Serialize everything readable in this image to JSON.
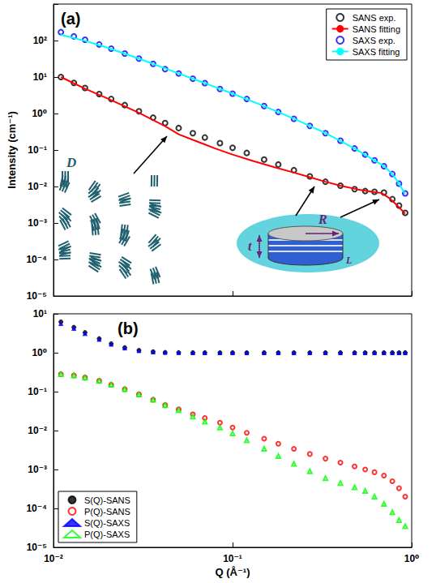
{
  "chart_data": [
    {
      "type": "scatter",
      "title": "(a)",
      "ylabel": "Intensity (cm⁻¹)",
      "log": true,
      "grid": false,
      "legend": "upper right",
      "tick_labels": "y",
      "xlim": [
        0.01,
        1
      ],
      "xticks": [
        0.01,
        0.1,
        1
      ],
      "ylim": [
        1e-05,
        1000
      ],
      "yticks": [
        {
          "value": 1e-05,
          "label": "10⁻⁵"
        },
        {
          "value": 0.0001,
          "label": "10⁻⁴"
        },
        {
          "value": 0.001,
          "label": "10⁻³"
        },
        {
          "value": 0.01,
          "label": "10⁻²"
        },
        {
          "value": 0.1,
          "label": "10⁻¹"
        },
        {
          "value": 1,
          "label": "10⁰"
        },
        {
          "value": 10,
          "label": "10¹"
        },
        {
          "value": 100,
          "label": "10²"
        }
      ],
      "annotations": [
        "D",
        "R",
        "t",
        "L"
      ],
      "series": [
        {
          "name": "SANS exp.",
          "type": "scatter",
          "marker": "open_circle",
          "color": "#000000",
          "x": [
            0.011,
            0.013,
            0.015,
            0.018,
            0.021,
            0.025,
            0.03,
            0.036,
            0.042,
            0.05,
            0.06,
            0.07,
            0.085,
            0.1,
            0.12,
            0.15,
            0.18,
            0.22,
            0.27,
            0.33,
            0.4,
            0.48,
            0.55,
            0.62,
            0.7,
            0.78,
            0.85,
            0.92
          ],
          "values": [
            10,
            6.9,
            5.0,
            3.4,
            2.5,
            1.7,
            1.15,
            0.77,
            0.55,
            0.4,
            0.29,
            0.22,
            0.155,
            0.115,
            0.083,
            0.055,
            0.04,
            0.028,
            0.019,
            0.0135,
            0.0105,
            0.0085,
            0.0075,
            0.0072,
            0.0068,
            0.0045,
            0.003,
            0.0019
          ]
        },
        {
          "name": "SANS fitting",
          "type": "line",
          "line_style": "solid",
          "color": "#ff0000",
          "x": [
            0.011,
            0.015,
            0.02,
            0.03,
            0.042,
            0.05,
            0.06,
            0.08,
            0.1,
            0.13,
            0.17,
            0.22,
            0.27,
            0.33,
            0.4,
            0.5,
            0.6,
            0.68,
            0.75,
            0.82,
            0.92
          ],
          "values": [
            10,
            4.8,
            2.6,
            1.05,
            0.45,
            0.27,
            0.19,
            0.11,
            0.075,
            0.05,
            0.034,
            0.024,
            0.018,
            0.0135,
            0.0105,
            0.0083,
            0.0072,
            0.0066,
            0.0048,
            0.0032,
            0.0018
          ]
        },
        {
          "name": "SAXS exp.",
          "type": "scatter",
          "marker": "open_circle",
          "color": "#0000ff",
          "x": [
            0.011,
            0.013,
            0.015,
            0.018,
            0.021,
            0.025,
            0.03,
            0.036,
            0.042,
            0.05,
            0.06,
            0.07,
            0.085,
            0.1,
            0.12,
            0.15,
            0.18,
            0.22,
            0.27,
            0.33,
            0.4,
            0.48,
            0.55,
            0.62,
            0.7,
            0.78,
            0.85,
            0.92
          ],
          "values": [
            170,
            130,
            105,
            78,
            60,
            44,
            32,
            23,
            16.5,
            12.5,
            9,
            6.8,
            4.7,
            3.5,
            2.5,
            1.6,
            1.1,
            0.72,
            0.46,
            0.29,
            0.18,
            0.11,
            0.075,
            0.052,
            0.036,
            0.022,
            0.012,
            0.0065
          ]
        },
        {
          "name": "SAXS fitting",
          "type": "line",
          "line_style": "solid",
          "color": "#00ffff",
          "x": [
            0.011,
            0.015,
            0.02,
            0.03,
            0.05,
            0.07,
            0.1,
            0.15,
            0.22,
            0.33,
            0.48,
            0.62,
            0.7,
            0.78,
            0.85,
            0.92
          ],
          "values": [
            145,
            98,
            64,
            32,
            12.5,
            6.8,
            3.5,
            1.6,
            0.72,
            0.29,
            0.11,
            0.052,
            0.036,
            0.022,
            0.012,
            0.0062
          ]
        }
      ]
    },
    {
      "type": "scatter",
      "title": "(b)",
      "xlabel": "Q (Å⁻¹)",
      "log": true,
      "grid": false,
      "legend": "lower left",
      "tick_labels": true,
      "xlim": [
        0.01,
        1
      ],
      "xticks": [
        {
          "value": 0.01,
          "label": "10⁻²"
        },
        {
          "value": 0.1,
          "label": "10⁻¹"
        },
        {
          "value": 1,
          "label": "10⁰"
        }
      ],
      "ylim": [
        1e-05,
        10
      ],
      "yticks": [
        {
          "value": 1e-05,
          "label": "10⁻⁵"
        },
        {
          "value": 0.0001,
          "label": "10⁻⁴"
        },
        {
          "value": 0.001,
          "label": "10⁻³"
        },
        {
          "value": 0.01,
          "label": "10⁻²"
        },
        {
          "value": 0.1,
          "label": "10⁻¹"
        },
        {
          "value": 1,
          "label": "10⁰"
        },
        {
          "value": 10,
          "label": "10¹"
        }
      ],
      "series": [
        {
          "name": "S(Q)-SANS",
          "type": "scatter",
          "marker": "circle",
          "color": "#000000",
          "x": [
            0.011,
            0.013,
            0.015,
            0.018,
            0.021,
            0.025,
            0.03,
            0.036,
            0.042,
            0.05,
            0.06,
            0.07,
            0.085,
            0.1,
            0.12,
            0.15,
            0.18,
            0.22,
            0.27,
            0.33,
            0.4,
            0.48,
            0.55,
            0.62,
            0.7,
            0.78,
            0.85,
            0.92
          ],
          "values": [
            6.2,
            4.5,
            3.3,
            2.3,
            1.7,
            1.35,
            1.15,
            1.06,
            1.02,
            1.01,
            1.0,
            1.0,
            1.0,
            1.0,
            1.0,
            1.0,
            1.0,
            1.0,
            1.0,
            1.0,
            1.0,
            1.0,
            1.0,
            1.0,
            1.0,
            1.0,
            1.0,
            1.0
          ]
        },
        {
          "name": "P(Q)-SANS",
          "type": "scatter",
          "marker": "open_circle",
          "color": "#ff0000",
          "x": [
            0.011,
            0.013,
            0.015,
            0.018,
            0.021,
            0.025,
            0.03,
            0.036,
            0.042,
            0.05,
            0.06,
            0.07,
            0.085,
            0.1,
            0.12,
            0.15,
            0.18,
            0.22,
            0.27,
            0.33,
            0.4,
            0.48,
            0.55,
            0.62,
            0.7,
            0.78,
            0.85,
            0.92
          ],
          "values": [
            0.28,
            0.26,
            0.23,
            0.19,
            0.15,
            0.115,
            0.085,
            0.062,
            0.045,
            0.035,
            0.026,
            0.021,
            0.016,
            0.012,
            0.0088,
            0.0062,
            0.0046,
            0.0034,
            0.0025,
            0.0019,
            0.0015,
            0.0012,
            0.001,
            0.00085,
            0.0007,
            0.0005,
            0.00033,
            0.0002
          ]
        },
        {
          "name": "S(Q)-SAXS",
          "type": "scatter",
          "marker": "triangle",
          "color": "#0000ff",
          "x": [
            0.011,
            0.013,
            0.015,
            0.018,
            0.021,
            0.025,
            0.03,
            0.036,
            0.042,
            0.05,
            0.06,
            0.07,
            0.085,
            0.1,
            0.12,
            0.15,
            0.18,
            0.22,
            0.27,
            0.33,
            0.4,
            0.48,
            0.55,
            0.62,
            0.7,
            0.78,
            0.85,
            0.92
          ],
          "values": [
            5.6,
            4.2,
            3.1,
            2.2,
            1.65,
            1.32,
            1.13,
            1.05,
            1.02,
            1.01,
            1.0,
            1.0,
            1.0,
            1.0,
            1.0,
            1.0,
            1.0,
            1.0,
            1.0,
            1.0,
            1.0,
            1.0,
            1.0,
            1.0,
            1.0,
            1.0,
            1.0,
            1.0
          ]
        },
        {
          "name": "P(Q)-SAXS",
          "type": "scatter",
          "marker": "open_triangle",
          "color": "#00ff00",
          "x": [
            0.011,
            0.013,
            0.015,
            0.018,
            0.021,
            0.025,
            0.03,
            0.036,
            0.042,
            0.05,
            0.06,
            0.07,
            0.085,
            0.1,
            0.12,
            0.15,
            0.18,
            0.22,
            0.27,
            0.33,
            0.4,
            0.48,
            0.55,
            0.62,
            0.7,
            0.78,
            0.85,
            0.92
          ],
          "values": [
            0.28,
            0.26,
            0.23,
            0.19,
            0.15,
            0.115,
            0.085,
            0.062,
            0.045,
            0.033,
            0.023,
            0.017,
            0.012,
            0.0085,
            0.0056,
            0.0034,
            0.0022,
            0.0014,
            0.0009,
            0.0006,
            0.00045,
            0.00035,
            0.00028,
            0.0002,
            0.00013,
            8e-05,
            5e-05,
            3.5e-05
          ]
        }
      ]
    }
  ]
}
